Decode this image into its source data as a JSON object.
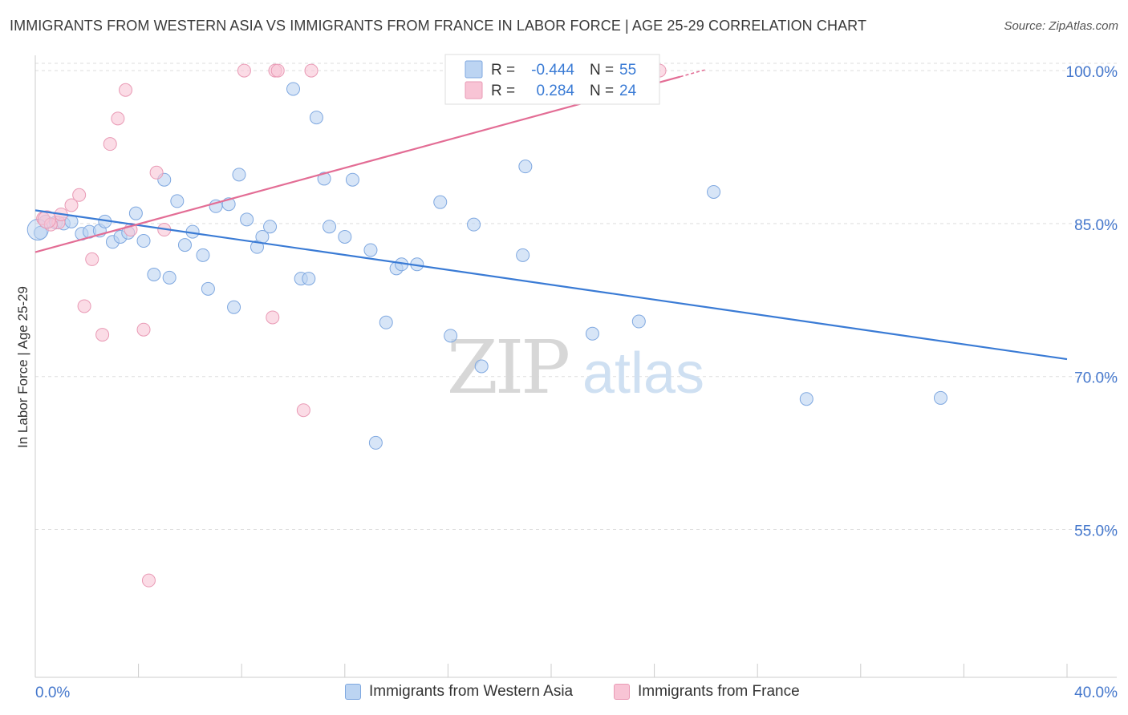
{
  "title": "IMMIGRANTS FROM WESTERN ASIA VS IMMIGRANTS FROM FRANCE IN LABOR FORCE | AGE 25-29 CORRELATION CHART",
  "source": "Source: ZipAtlas.com",
  "colors": {
    "blue": "#3a7bd5",
    "blue_fill": "#bcd4f2",
    "pink": "#e36d95",
    "pink_fill": "#f8c4d5",
    "axis_label": "#4477cc",
    "grid": "#dddddd"
  },
  "legend": {
    "rows": [
      {
        "r_label": "R =",
        "r_value": "-0.444",
        "n_label": "N =",
        "n_value": "55"
      },
      {
        "r_label": "R =",
        "r_value": "0.284",
        "n_label": "N =",
        "n_value": "24"
      }
    ]
  },
  "bottom_legend": {
    "western_asia": "Immigrants from Western Asia",
    "france": "Immigrants from France"
  },
  "watermark": {
    "zip": "ZIP",
    "atlas": "atlas"
  },
  "chart_data": {
    "type": "scatter",
    "title": "IMMIGRANTS FROM WESTERN ASIA VS IMMIGRANTS FROM FRANCE IN LABOR FORCE | AGE 25-29 CORRELATION CHART",
    "xlabel": "",
    "ylabel": "In Labor Force | Age 25-29",
    "xlim": [
      0,
      40
    ],
    "ylim": [
      40.5,
      101.5
    ],
    "x_tick_labels": [
      "0.0%",
      "40.0%"
    ],
    "y_ticks": [
      55,
      70,
      85,
      100
    ],
    "y_tick_labels": [
      "55.0%",
      "70.0%",
      "85.0%",
      "100.0%"
    ],
    "grid": true,
    "legend_position": "top-center",
    "series": [
      {
        "name": "Immigrants from Western Asia",
        "color": "#3a7bd5",
        "r": -0.444,
        "n": 55,
        "trend": {
          "x": [
            0,
            40
          ],
          "y": [
            86.3,
            71.7
          ]
        },
        "points": [
          [
            0.2,
            84.1
          ],
          [
            0.4,
            85.2
          ],
          [
            0.8,
            85.1
          ],
          [
            1.1,
            85.0
          ],
          [
            1.4,
            85.2
          ],
          [
            1.8,
            84.0
          ],
          [
            2.1,
            84.2
          ],
          [
            2.5,
            84.3
          ],
          [
            2.7,
            85.2
          ],
          [
            3.0,
            83.2
          ],
          [
            3.3,
            83.7
          ],
          [
            3.6,
            84.1
          ],
          [
            3.9,
            86.0
          ],
          [
            4.2,
            83.3
          ],
          [
            4.6,
            80.0
          ],
          [
            5.0,
            89.3
          ],
          [
            5.2,
            79.7
          ],
          [
            5.5,
            87.2
          ],
          [
            5.8,
            82.9
          ],
          [
            6.1,
            84.2
          ],
          [
            6.5,
            81.9
          ],
          [
            6.7,
            78.6
          ],
          [
            7.0,
            86.7
          ],
          [
            7.5,
            86.9
          ],
          [
            7.7,
            76.8
          ],
          [
            7.9,
            89.8
          ],
          [
            8.2,
            85.4
          ],
          [
            8.6,
            82.7
          ],
          [
            8.8,
            83.7
          ],
          [
            9.1,
            84.7
          ],
          [
            10.0,
            98.2
          ],
          [
            10.3,
            79.6
          ],
          [
            10.6,
            79.6
          ],
          [
            10.9,
            95.4
          ],
          [
            11.2,
            89.4
          ],
          [
            11.4,
            84.7
          ],
          [
            12.0,
            83.7
          ],
          [
            12.3,
            89.3
          ],
          [
            13.0,
            82.4
          ],
          [
            13.2,
            63.5
          ],
          [
            13.6,
            75.3
          ],
          [
            14.0,
            80.6
          ],
          [
            14.2,
            81.0
          ],
          [
            14.8,
            81.0
          ],
          [
            15.7,
            87.1
          ],
          [
            16.1,
            74.0
          ],
          [
            17.0,
            84.9
          ],
          [
            17.3,
            71.0
          ],
          [
            18.9,
            81.9
          ],
          [
            19.0,
            90.6
          ],
          [
            21.6,
            74.2
          ],
          [
            23.4,
            75.4
          ],
          [
            26.3,
            88.1
          ],
          [
            29.9,
            67.8
          ],
          [
            35.1,
            67.9
          ]
        ]
      },
      {
        "name": "Immigrants from France",
        "color": "#e36d95",
        "r": 0.284,
        "n": 24,
        "trend": {
          "x": [
            0,
            25.0
          ],
          "y": [
            82.2,
            99.4
          ]
        },
        "points": [
          [
            0.3,
            85.5
          ],
          [
            0.9,
            85.1
          ],
          [
            1.0,
            85.9
          ],
          [
            1.4,
            86.8
          ],
          [
            1.7,
            87.8
          ],
          [
            2.2,
            81.5
          ],
          [
            1.9,
            76.9
          ],
          [
            2.6,
            74.1
          ],
          [
            2.9,
            92.8
          ],
          [
            3.2,
            95.3
          ],
          [
            3.5,
            98.1
          ],
          [
            3.7,
            84.4
          ],
          [
            4.2,
            74.6
          ],
          [
            4.4,
            50.0
          ],
          [
            4.7,
            90.0
          ],
          [
            5.0,
            84.4
          ],
          [
            8.1,
            100.0
          ],
          [
            9.2,
            75.8
          ],
          [
            9.3,
            100.0
          ],
          [
            9.4,
            100.0
          ],
          [
            10.4,
            66.7
          ],
          [
            10.7,
            100.0
          ],
          [
            24.2,
            100.0
          ],
          [
            0.6,
            84.9
          ]
        ]
      }
    ]
  }
}
